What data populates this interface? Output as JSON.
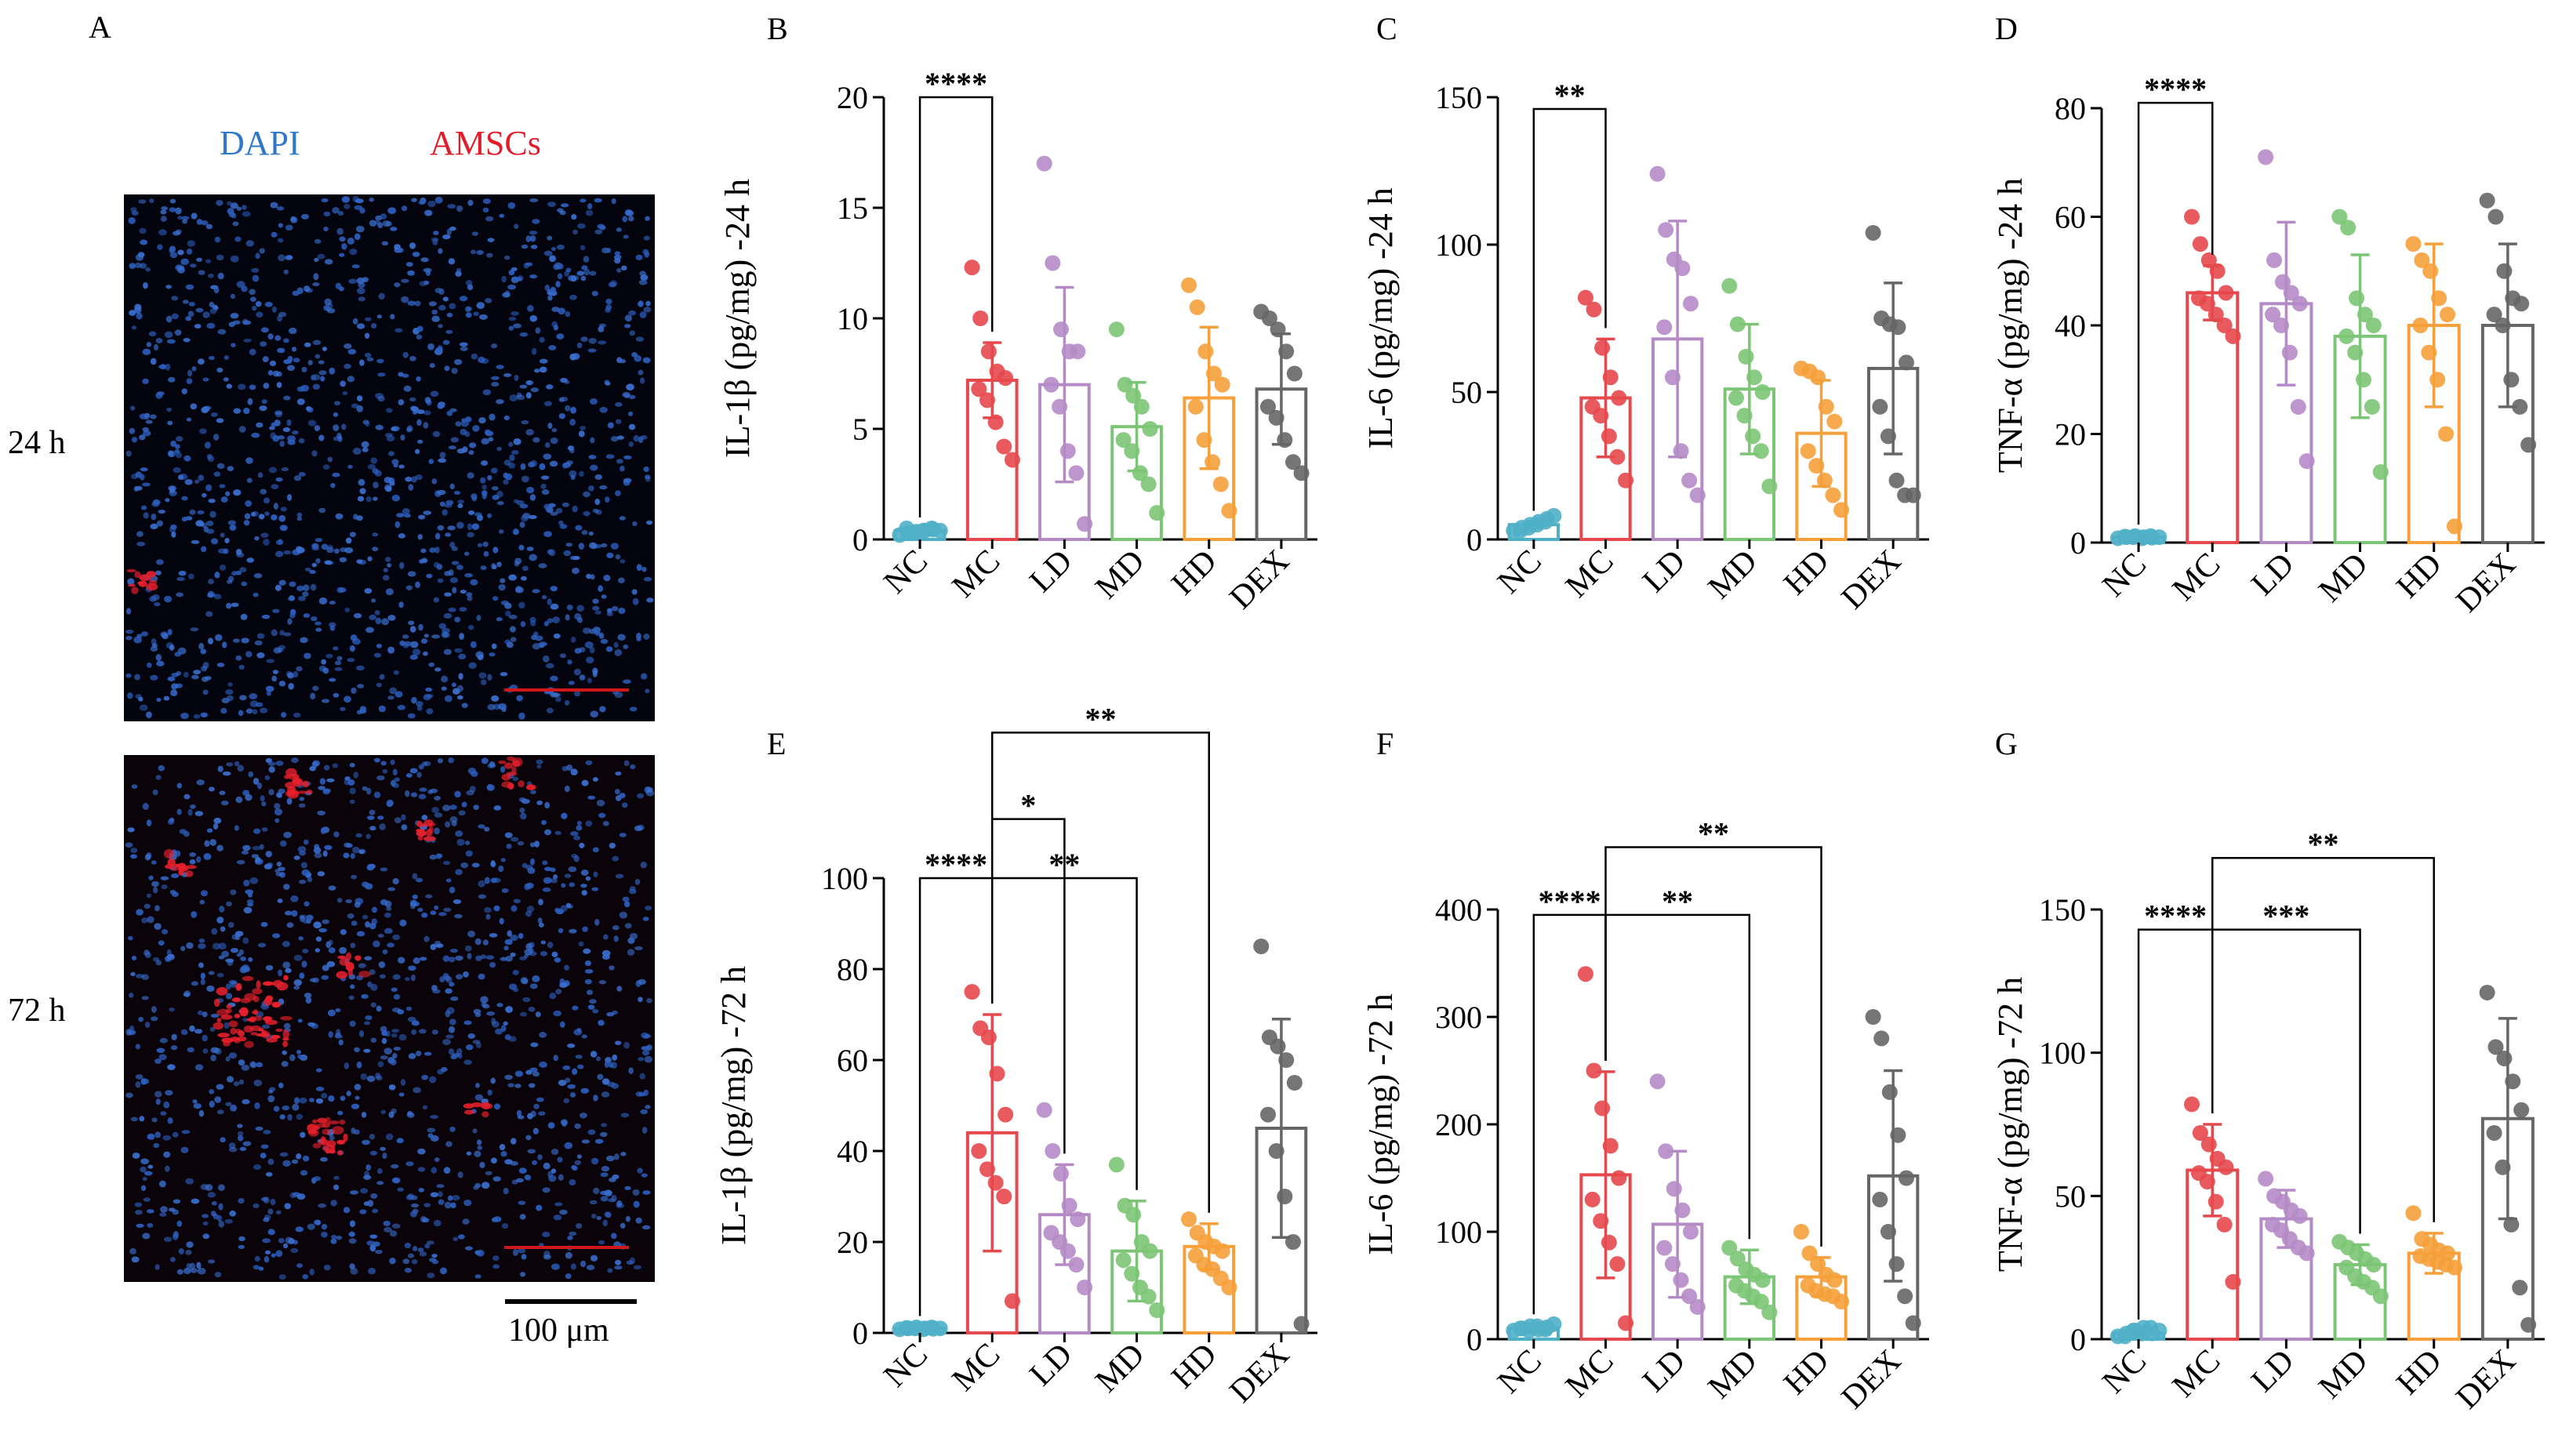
{
  "panel_letters": {
    "A": "A",
    "B": "B",
    "C": "C",
    "D": "D",
    "E": "E",
    "F": "F",
    "G": "G"
  },
  "micro": {
    "dapi_label": "DAPI",
    "amscs_label": "AMSCs",
    "row_labels": [
      "24 h",
      "72 h"
    ],
    "scale_label": "100 μm",
    "colors": {
      "dapi": "#2f77c8",
      "amscs": "#e21d2b"
    }
  },
  "group_colors": [
    "#4fb0c6",
    "#e5484d",
    "#b58bc6",
    "#7cc576",
    "#f5a03a",
    "#666666"
  ],
  "chart_data": [
    {
      "panel": "B",
      "type": "bar",
      "ylabel": "IL-1β (pg/mg) -24 h",
      "categories": [
        "NC",
        "MC",
        "LD",
        "MD",
        "HD",
        "DEX"
      ],
      "ylim": [
        0,
        20
      ],
      "yticks": [
        0,
        5,
        10,
        15,
        20
      ],
      "means": [
        0.4,
        7.2,
        7.0,
        5.1,
        6.4,
        6.8
      ],
      "sd": [
        0.1,
        1.7,
        4.4,
        2.0,
        3.2,
        2.5
      ],
      "points": [
        [
          0.2,
          0.3,
          0.35,
          0.4,
          0.45,
          0.5,
          0.3,
          0.4,
          0.5,
          0.4
        ],
        [
          12.3,
          10.0,
          8.5,
          7.6,
          7.3,
          6.8,
          6.3,
          5.3,
          4.2,
          3.6
        ],
        [
          17.0,
          12.5,
          9.5,
          8.5,
          8.5,
          7.0,
          6.0,
          4.0,
          3.0,
          0.7
        ],
        [
          9.5,
          7.0,
          6.5,
          6.0,
          5.0,
          4.5,
          4.0,
          3.0,
          2.5,
          1.2
        ],
        [
          11.5,
          10.5,
          8.5,
          7.5,
          7.0,
          6.0,
          4.5,
          3.5,
          2.5,
          1.3
        ],
        [
          10.3,
          10.0,
          9.5,
          8.5,
          7.5,
          6.0,
          5.5,
          4.5,
          3.5,
          3.0
        ]
      ],
      "significance": [
        {
          "from": 0,
          "to": 1,
          "y": 20,
          "label": "****"
        }
      ]
    },
    {
      "panel": "C",
      "type": "bar",
      "ylabel": "IL-6 (pg/mg) -24 h",
      "categories": [
        "NC",
        "MC",
        "LD",
        "MD",
        "HD",
        "DEX"
      ],
      "ylim": [
        0,
        150
      ],
      "yticks": [
        0,
        50,
        100,
        150
      ],
      "means": [
        5,
        48,
        68,
        51,
        36,
        58
      ],
      "sd": [
        1,
        20,
        40,
        22,
        18,
        29
      ],
      "points": [
        [
          3,
          4,
          5,
          6,
          7,
          3,
          4,
          5,
          6,
          8
        ],
        [
          82,
          78,
          65,
          55,
          48,
          45,
          42,
          35,
          28,
          20
        ],
        [
          124,
          105,
          95,
          92,
          80,
          72,
          55,
          30,
          20,
          15
        ],
        [
          86,
          73,
          62,
          55,
          50,
          48,
          42,
          35,
          30,
          18
        ],
        [
          58,
          57,
          55,
          45,
          40,
          30,
          25,
          20,
          15,
          10
        ],
        [
          104,
          75,
          73,
          72,
          60,
          45,
          35,
          20,
          15,
          15
        ]
      ],
      "significance": [
        {
          "from": 0,
          "to": 1,
          "y": 146,
          "label": "**"
        }
      ]
    },
    {
      "panel": "D",
      "type": "bar",
      "ylabel": "TNF-α (pg/mg) -24 h",
      "categories": [
        "NC",
        "MC",
        "LD",
        "MD",
        "HD",
        "DEX"
      ],
      "ylim": [
        0,
        80
      ],
      "yticks": [
        0,
        20,
        40,
        60,
        80
      ],
      "means": [
        1,
        46,
        44,
        38,
        40,
        40
      ],
      "sd": [
        0.3,
        5,
        15,
        15,
        15,
        15
      ],
      "points": [
        [
          0.8,
          1,
          1.2,
          1,
          0.9,
          1.1,
          1,
          0.8,
          1.2,
          1
        ],
        [
          60,
          55,
          52,
          50,
          46,
          45,
          44,
          42,
          40,
          38
        ],
        [
          71,
          52,
          48,
          46,
          44,
          42,
          40,
          35,
          25,
          15
        ],
        [
          60,
          58,
          45,
          42,
          40,
          38,
          35,
          30,
          25,
          13
        ],
        [
          55,
          52,
          50,
          45,
          42,
          40,
          35,
          30,
          20,
          3
        ],
        [
          63,
          60,
          50,
          45,
          44,
          42,
          40,
          30,
          25,
          18
        ]
      ],
      "significance": [
        {
          "from": 0,
          "to": 1,
          "y": 81,
          "label": "****"
        }
      ]
    },
    {
      "panel": "E",
      "type": "bar",
      "ylabel": "IL-1β (pg/mg) -72 h",
      "categories": [
        "NC",
        "MC",
        "LD",
        "MD",
        "HD",
        "DEX"
      ],
      "ylim": [
        0,
        100
      ],
      "yticks": [
        0,
        20,
        40,
        60,
        80,
        100
      ],
      "means": [
        1,
        44,
        26,
        18,
        19,
        45
      ],
      "sd": [
        0.3,
        26,
        11,
        11,
        5,
        24
      ],
      "points": [
        [
          0.8,
          1,
          1.2,
          1,
          0.9,
          1.1,
          1,
          0.8,
          1.2,
          1
        ],
        [
          75,
          67,
          65,
          57,
          48,
          40,
          36,
          33,
          30,
          7
        ],
        [
          49,
          40,
          35,
          28,
          25,
          22,
          20,
          18,
          15,
          10
        ],
        [
          37,
          28,
          26,
          20,
          18,
          16,
          13,
          10,
          8,
          5
        ],
        [
          25,
          22,
          20,
          19,
          18,
          17,
          15,
          14,
          12,
          10
        ],
        [
          85,
          65,
          63,
          60,
          55,
          48,
          40,
          30,
          20,
          2
        ]
      ],
      "significance": [
        {
          "from": 0,
          "to": 1,
          "y": 100,
          "label": "****"
        },
        {
          "from": 1,
          "to": 2,
          "y": 113,
          "label": "*"
        },
        {
          "from": 1,
          "to": 3,
          "y": 100,
          "label": "**"
        },
        {
          "from": 1,
          "to": 4,
          "y": 132,
          "label": "**"
        }
      ]
    },
    {
      "panel": "F",
      "type": "bar",
      "ylabel": "IL-6 (pg/mg) -72 h",
      "categories": [
        "NC",
        "MC",
        "LD",
        "MD",
        "HD",
        "DEX"
      ],
      "ylim": [
        0,
        400
      ],
      "yticks": [
        0,
        100,
        200,
        300,
        400
      ],
      "means": [
        10,
        153,
        107,
        58,
        58,
        152
      ],
      "sd": [
        3,
        96,
        68,
        25,
        18,
        98
      ],
      "points": [
        [
          8,
          10,
          12,
          9,
          11,
          10,
          8,
          12,
          9,
          14
        ],
        [
          340,
          250,
          215,
          180,
          150,
          130,
          110,
          90,
          70,
          15
        ],
        [
          240,
          175,
          140,
          120,
          100,
          85,
          70,
          55,
          40,
          30
        ],
        [
          85,
          75,
          65,
          60,
          55,
          50,
          45,
          40,
          35,
          25
        ],
        [
          100,
          80,
          70,
          60,
          55,
          50,
          45,
          42,
          40,
          35
        ],
        [
          300,
          280,
          230,
          190,
          150,
          130,
          100,
          70,
          40,
          15
        ]
      ],
      "significance": [
        {
          "from": 0,
          "to": 1,
          "y": 395,
          "label": "****"
        },
        {
          "from": 1,
          "to": 3,
          "y": 395,
          "label": "**"
        },
        {
          "from": 1,
          "to": 4,
          "y": 458,
          "label": "**"
        }
      ]
    },
    {
      "panel": "G",
      "type": "bar",
      "ylabel": "TNF-α (pg/mg) -72 h",
      "categories": [
        "NC",
        "MC",
        "LD",
        "MD",
        "HD",
        "DEX"
      ],
      "ylim": [
        0,
        150
      ],
      "yticks": [
        0,
        50,
        100,
        150
      ],
      "means": [
        2,
        59,
        42,
        26,
        30,
        77
      ],
      "sd": [
        1,
        16,
        10,
        7,
        7,
        35
      ],
      "points": [
        [
          1,
          2,
          3,
          4,
          2,
          1,
          3,
          2,
          4,
          3
        ],
        [
          82,
          72,
          68,
          63,
          60,
          58,
          55,
          48,
          40,
          20
        ],
        [
          56,
          50,
          48,
          45,
          43,
          40,
          38,
          35,
          32,
          30
        ],
        [
          34,
          32,
          30,
          28,
          26,
          25,
          22,
          20,
          18,
          15
        ],
        [
          44,
          35,
          33,
          31,
          30,
          29,
          28,
          27,
          26,
          25
        ],
        [
          121,
          102,
          98,
          90,
          80,
          72,
          60,
          40,
          18,
          5
        ]
      ],
      "significance": [
        {
          "from": 0,
          "to": 1,
          "y": 143,
          "label": "****"
        },
        {
          "from": 1,
          "to": 3,
          "y": 143,
          "label": "***"
        },
        {
          "from": 1,
          "to": 4,
          "y": 168,
          "label": "**"
        }
      ]
    }
  ]
}
